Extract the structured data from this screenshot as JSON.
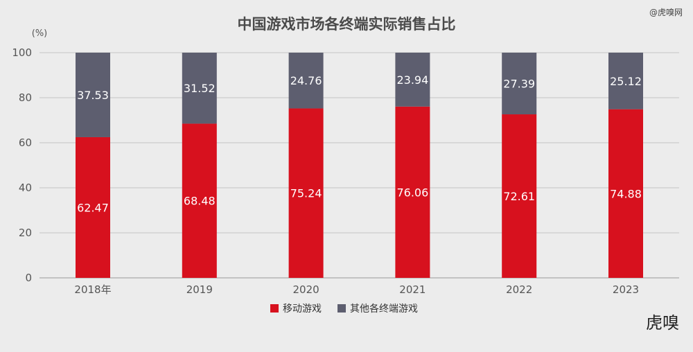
{
  "chart_data": {
    "type": "bar",
    "stacked": true,
    "title": "中国游戏市场各终端实际销售占比",
    "unit_label": "(%)",
    "categories": [
      "2018年",
      "2019",
      "2020",
      "2021",
      "2022",
      "2023"
    ],
    "series": [
      {
        "name": "移动游戏",
        "color": "#d7111e",
        "values": [
          62.47,
          68.48,
          75.24,
          76.06,
          72.61,
          74.88
        ]
      },
      {
        "name": "其他各终端游戏",
        "color": "#5d5e6f",
        "values": [
          37.53,
          31.52,
          24.76,
          23.94,
          27.39,
          25.12
        ]
      }
    ],
    "ylim": [
      0,
      100
    ],
    "yticks": [
      0,
      20,
      40,
      60,
      80,
      100
    ],
    "grid": true,
    "legend_position": "bottom-center"
  },
  "watermark": {
    "top_text": "@虎嗅网",
    "logo_text": "虎嗅"
  }
}
